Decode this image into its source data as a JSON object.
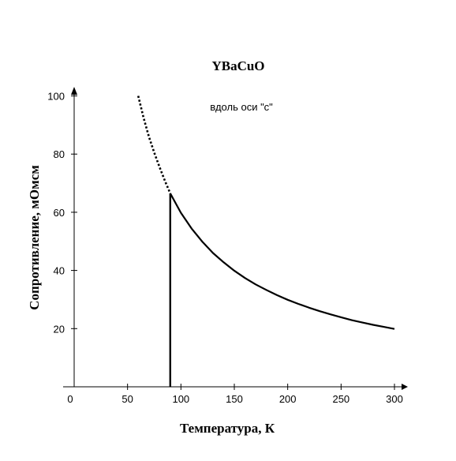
{
  "chart_data": {
    "type": "line",
    "title": "YBaCuO",
    "annotation": "вдоль оси \"с\"",
    "xlabel": "Температура, К",
    "ylabel": "Сопротивление, мОмсм",
    "xlim": [
      0,
      305
    ],
    "ylim": [
      0,
      103
    ],
    "x_ticks": [
      0,
      50,
      100,
      150,
      200,
      250,
      300
    ],
    "x_tick_labels": [
      "0",
      "50",
      "100",
      "150",
      "200",
      "250",
      "300"
    ],
    "y_ticks": [
      20,
      40,
      60,
      80,
      100
    ],
    "y_tick_labels": [
      "20",
      "40",
      "60",
      "80",
      "100"
    ],
    "grid": false,
    "transition": {
      "x": 90,
      "y_top": 66.5,
      "y_bottom": 0
    },
    "series": [
      {
        "style": "dotted",
        "x": [
          60,
          65,
          70,
          75,
          80,
          85,
          90
        ],
        "y": [
          100,
          92.5,
          86,
          80.5,
          75.5,
          70.8,
          66.5
        ]
      },
      {
        "style": "solid",
        "x": [
          90,
          100,
          110,
          120,
          130,
          140,
          150,
          160,
          170,
          180,
          190,
          200,
          210,
          220,
          230,
          240,
          250,
          260,
          270,
          280,
          290,
          300
        ],
        "y": [
          66.5,
          59.8,
          54.4,
          49.9,
          46.0,
          42.8,
          39.9,
          37.4,
          35.2,
          33.3,
          31.5,
          29.9,
          28.5,
          27.2,
          26.0,
          24.9,
          23.9,
          22.9,
          22.1,
          21.3,
          20.6,
          19.9
        ]
      }
    ]
  }
}
